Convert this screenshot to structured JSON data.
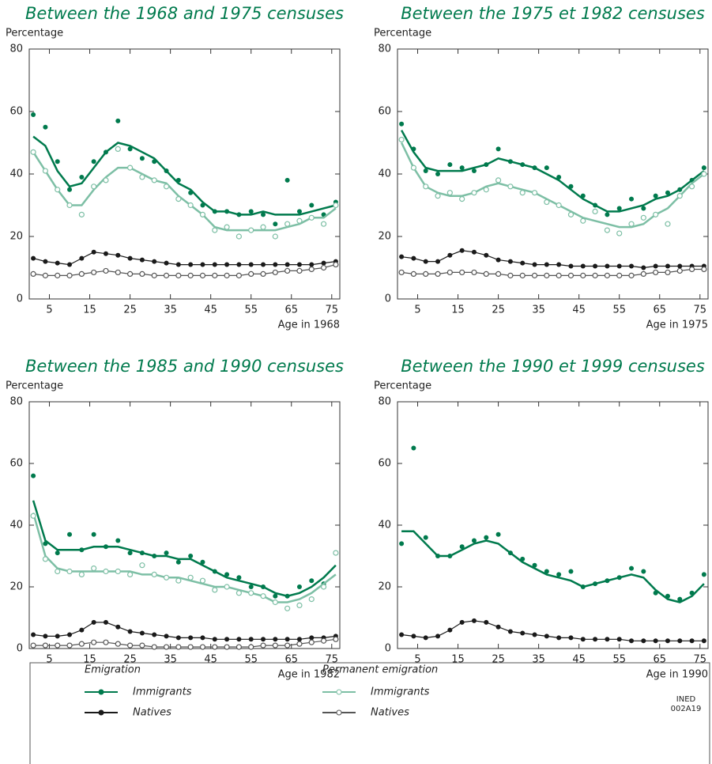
{
  "chart_data": [
    {
      "type": "scatter",
      "title": "Between the 1968 and 1975 censuses",
      "y_label": "Percentage",
      "x_label": "Age in 1968",
      "x": [
        1,
        4,
        7,
        10,
        13,
        16,
        19,
        22,
        25,
        28,
        31,
        34,
        37,
        40,
        43,
        46,
        49,
        52,
        55,
        58,
        61,
        64,
        67,
        70,
        73,
        76
      ],
      "xlim": [
        0,
        77
      ],
      "ylim": [
        0,
        80
      ],
      "xticks": [
        5,
        15,
        25,
        35,
        45,
        55,
        65,
        75
      ],
      "yticks": [
        0,
        20,
        40,
        60,
        80
      ],
      "series": [
        {
          "color": "#007a4d",
          "marker": "filled",
          "values": [
            59,
            55,
            44,
            35,
            39,
            44,
            47,
            57,
            48,
            45,
            44,
            41,
            38,
            34,
            30,
            28,
            28,
            27,
            28,
            27,
            24,
            38,
            28,
            30,
            27,
            31
          ],
          "trend": [
            52,
            49,
            41,
            36,
            37,
            42,
            47,
            50,
            49,
            47,
            45,
            41,
            37,
            35,
            31,
            28,
            28,
            27,
            27,
            28,
            27,
            27,
            27,
            28,
            29,
            30
          ]
        },
        {
          "color": "#7dbfa5",
          "marker": "open",
          "values": [
            47,
            41,
            35,
            30,
            27,
            36,
            38,
            48,
            42,
            39,
            38,
            36,
            32,
            30,
            27,
            22,
            23,
            20,
            22,
            23,
            20,
            24,
            25,
            26,
            24,
            30
          ],
          "trend": [
            47,
            41,
            35,
            30,
            30,
            35,
            39,
            42,
            42,
            40,
            38,
            37,
            33,
            30,
            27,
            23,
            22,
            22,
            22,
            22,
            22,
            23,
            24,
            26,
            26,
            29
          ]
        },
        {
          "color": "#1a1a1a",
          "marker": "filled",
          "values": [
            13,
            12,
            11.5,
            11,
            13,
            15,
            14.5,
            14,
            13,
            12.5,
            12,
            11.5,
            11,
            11,
            11,
            11,
            11,
            11,
            11,
            11,
            11,
            11,
            11,
            11,
            11.5,
            12
          ]
        },
        {
          "color": "#555555",
          "marker": "open",
          "values": [
            8,
            7.5,
            7.5,
            7.5,
            8,
            8.5,
            9,
            8.5,
            8,
            8,
            7.5,
            7.5,
            7.5,
            7.5,
            7.5,
            7.5,
            7.5,
            7.5,
            8,
            8,
            8.5,
            9,
            9,
            9.5,
            10,
            11
          ]
        }
      ]
    },
    {
      "type": "scatter",
      "title": "Between the 1975 et 1982 censuses",
      "y_label": "Percentage",
      "x_label": "Age in 1975",
      "x": [
        1,
        4,
        7,
        10,
        13,
        16,
        19,
        22,
        25,
        28,
        31,
        34,
        37,
        40,
        43,
        46,
        49,
        52,
        55,
        58,
        61,
        64,
        67,
        70,
        73,
        76
      ],
      "xlim": [
        0,
        77
      ],
      "ylim": [
        0,
        80
      ],
      "xticks": [
        5,
        15,
        25,
        35,
        45,
        55,
        65,
        75
      ],
      "yticks": [
        0,
        20,
        40,
        60,
        80
      ],
      "series": [
        {
          "color": "#007a4d",
          "marker": "filled",
          "values": [
            56,
            48,
            41,
            40,
            43,
            42,
            41,
            43,
            48,
            44,
            43,
            42,
            42,
            39,
            36,
            33,
            30,
            27,
            29,
            32,
            29,
            33,
            34,
            35,
            38,
            42
          ],
          "trend": [
            54,
            47,
            42,
            41,
            41,
            41,
            42,
            43,
            45,
            44,
            43,
            42,
            40,
            38,
            35,
            32,
            30,
            28,
            28,
            29,
            30,
            32,
            33,
            35,
            38,
            41
          ]
        },
        {
          "color": "#7dbfa5",
          "marker": "open",
          "values": [
            51,
            42,
            36,
            33,
            34,
            32,
            34,
            35,
            38,
            36,
            34,
            34,
            31,
            30,
            27,
            25,
            28,
            22,
            21,
            24,
            26,
            27,
            24,
            33,
            36,
            40
          ],
          "trend": [
            50,
            42,
            36,
            34,
            33,
            33,
            34,
            36,
            37,
            36,
            35,
            34,
            32,
            30,
            28,
            26,
            25,
            24,
            23,
            23,
            24,
            27,
            29,
            33,
            37,
            40
          ]
        },
        {
          "color": "#1a1a1a",
          "marker": "filled",
          "values": [
            13.5,
            13,
            12,
            12,
            14,
            15.5,
            15,
            14,
            12.5,
            12,
            11.5,
            11,
            11,
            11,
            10.5,
            10.5,
            10.5,
            10.5,
            10.5,
            10.5,
            10,
            10.5,
            10.5,
            10.5,
            10.5,
            10.5
          ]
        },
        {
          "color": "#555555",
          "marker": "open",
          "values": [
            8.5,
            8,
            8,
            8,
            8.5,
            8.5,
            8.5,
            8,
            8,
            7.5,
            7.5,
            7.5,
            7.5,
            7.5,
            7.5,
            7.5,
            7.5,
            7.5,
            7.5,
            7.5,
            8,
            8.5,
            8.5,
            9,
            9.5,
            9.5
          ]
        }
      ]
    },
    {
      "type": "scatter",
      "title": "Between the 1985 and 1990 censuses",
      "y_label": "Percentage",
      "x_label": "Age in 1982",
      "x": [
        1,
        4,
        7,
        10,
        13,
        16,
        19,
        22,
        25,
        28,
        31,
        34,
        37,
        40,
        43,
        46,
        49,
        52,
        55,
        58,
        61,
        64,
        67,
        70,
        73,
        76
      ],
      "xlim": [
        0,
        77
      ],
      "ylim": [
        0,
        80
      ],
      "xticks": [
        5,
        15,
        25,
        35,
        45,
        55,
        65,
        75
      ],
      "yticks": [
        0,
        20,
        40,
        60,
        80
      ],
      "series": [
        {
          "color": "#007a4d",
          "marker": "filled",
          "values": [
            56,
            34,
            31,
            37,
            32,
            37,
            33,
            35,
            31,
            31,
            30,
            31,
            28,
            30,
            28,
            25,
            24,
            23,
            20,
            20,
            17,
            17,
            20,
            22,
            21,
            31
          ],
          "trend": [
            48,
            35,
            32,
            32,
            32,
            33,
            33,
            33,
            32,
            31,
            30,
            30,
            29,
            29,
            27,
            25,
            23,
            22,
            21,
            20,
            18,
            17,
            18,
            20,
            23,
            27
          ]
        },
        {
          "color": "#7dbfa5",
          "marker": "open",
          "values": [
            43,
            29,
            25,
            25,
            24,
            26,
            25,
            25,
            24,
            27,
            24,
            23,
            22,
            23,
            22,
            19,
            20,
            18,
            18,
            17,
            15,
            13,
            14,
            16,
            20,
            31
          ],
          "trend": [
            44,
            30,
            26,
            25,
            25,
            25,
            25,
            25,
            25,
            24,
            24,
            23,
            23,
            22,
            21,
            20,
            20,
            19,
            18,
            17,
            15,
            15,
            16,
            18,
            21,
            24
          ]
        },
        {
          "color": "#1a1a1a",
          "marker": "filled",
          "values": [
            4.5,
            4,
            4,
            4.5,
            6,
            8.5,
            8.5,
            7,
            5.5,
            5,
            4.5,
            4,
            3.5,
            3.5,
            3.5,
            3,
            3,
            3,
            3,
            3,
            3,
            3,
            3,
            3.5,
            3.5,
            4
          ]
        },
        {
          "color": "#555555",
          "marker": "open",
          "values": [
            1,
            1,
            1,
            1,
            1.5,
            2,
            2,
            1.5,
            1,
            1,
            0.5,
            0.5,
            0.5,
            0.5,
            0.5,
            0.5,
            0.5,
            0.5,
            0.5,
            1,
            1,
            1,
            1.5,
            2,
            2.5,
            3
          ]
        }
      ]
    },
    {
      "type": "scatter",
      "title": "Between the 1990 et 1999 censuses",
      "y_label": "Percentage",
      "x_label": "Age in 1990",
      "x": [
        1,
        4,
        7,
        10,
        13,
        16,
        19,
        22,
        25,
        28,
        31,
        34,
        37,
        40,
        43,
        46,
        49,
        52,
        55,
        58,
        61,
        64,
        67,
        70,
        73,
        76
      ],
      "xlim": [
        0,
        77
      ],
      "ylim": [
        0,
        80
      ],
      "xticks": [
        5,
        15,
        25,
        35,
        45,
        55,
        65,
        75
      ],
      "yticks": [
        0,
        20,
        40,
        60,
        80
      ],
      "series": [
        {
          "color": "#007a4d",
          "marker": "filled",
          "values": [
            34,
            65,
            36,
            30,
            30,
            33,
            35,
            36,
            37,
            31,
            29,
            27,
            25,
            24,
            25,
            20,
            21,
            22,
            23,
            26,
            25,
            18,
            17,
            16,
            18,
            24
          ],
          "trend": [
            38,
            38,
            34,
            30,
            30,
            32,
            34,
            35,
            34,
            31,
            28,
            26,
            24,
            23,
            22,
            20,
            21,
            22,
            23,
            24,
            23,
            19,
            16,
            15,
            17,
            21
          ]
        },
        {
          "color": "#1a1a1a",
          "marker": "filled",
          "values": [
            4.5,
            4,
            3.5,
            4,
            6,
            8.5,
            9,
            8.5,
            7,
            5.5,
            5,
            4.5,
            4,
            3.5,
            3.5,
            3,
            3,
            3,
            3,
            2.5,
            2.5,
            2.5,
            2.5,
            2.5,
            2.5,
            2.5
          ]
        }
      ]
    }
  ],
  "legend": {
    "groups": [
      {
        "title": "Emigration",
        "items": [
          {
            "label": "Immigrants",
            "color": "#007a4d",
            "marker": "filled"
          },
          {
            "label": "Natives",
            "color": "#1a1a1a",
            "marker": "filled"
          }
        ]
      },
      {
        "title": "Permanent emigration",
        "items": [
          {
            "label": "Immigrants",
            "color": "#7dbfa5",
            "marker": "open"
          },
          {
            "label": "Natives",
            "color": "#555555",
            "marker": "open"
          }
        ]
      }
    ],
    "note": [
      "INED",
      "002A19"
    ]
  }
}
